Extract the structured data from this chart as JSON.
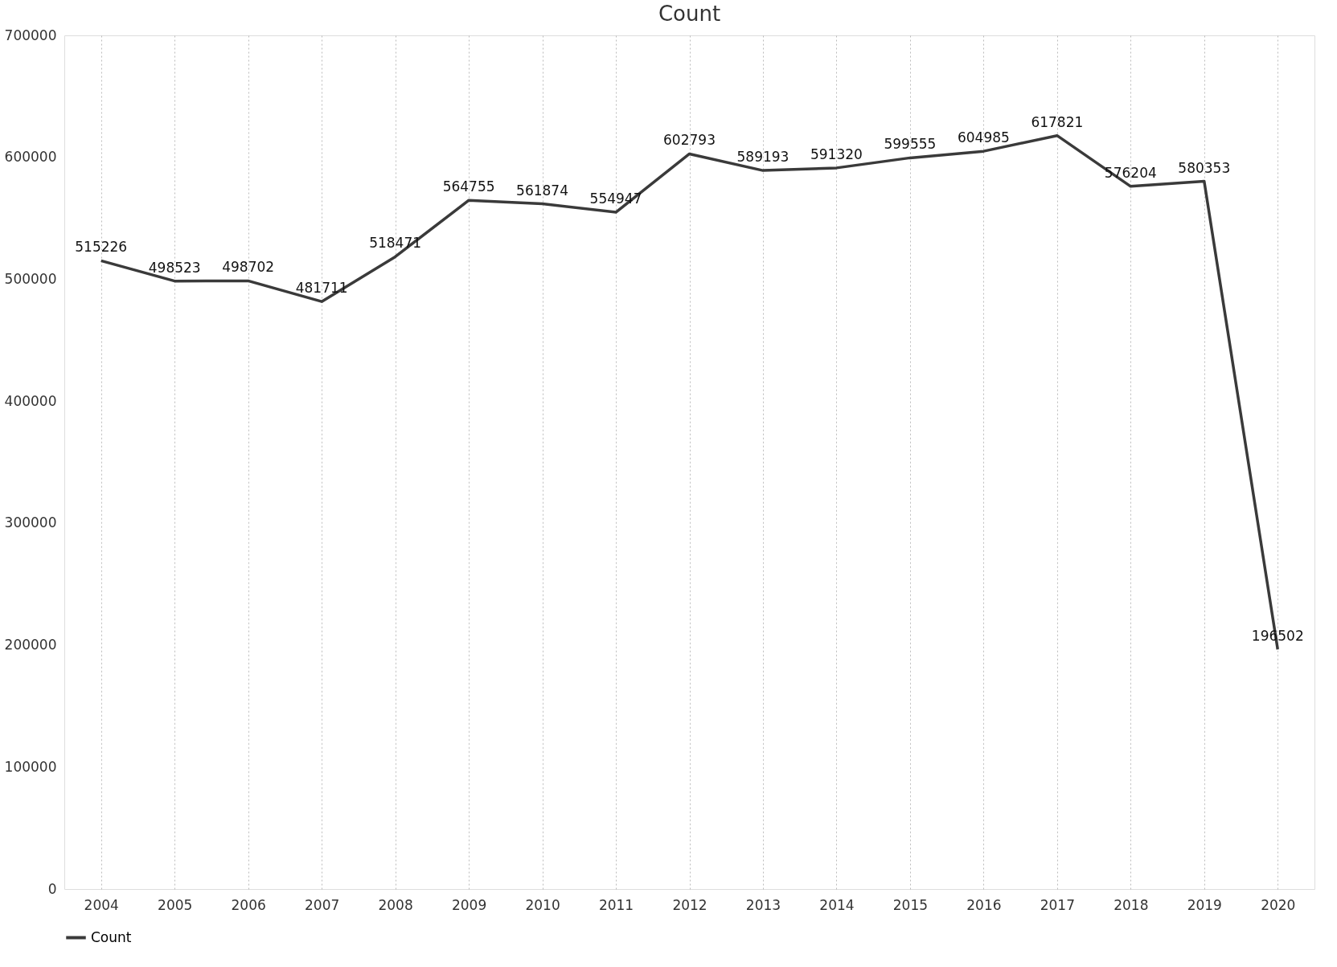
{
  "chart_data": {
    "type": "line",
    "title": "Count",
    "categories": [
      "2004",
      "2005",
      "2006",
      "2007",
      "2008",
      "2009",
      "2010",
      "2011",
      "2012",
      "2013",
      "2014",
      "2015",
      "2016",
      "2017",
      "2018",
      "2019",
      "2020"
    ],
    "series": [
      {
        "name": "Count",
        "color": "#3a3a3a",
        "values": [
          515226,
          498523,
          498702,
          481711,
          518471,
          564755,
          561874,
          554947,
          602793,
          589193,
          591320,
          599555,
          604985,
          617821,
          576204,
          580353,
          196502
        ]
      }
    ],
    "ylim": [
      0,
      700000
    ],
    "yticks": [
      0,
      100000,
      200000,
      300000,
      400000,
      500000,
      600000,
      700000
    ],
    "data_labels": true,
    "grid": "x",
    "legend": "bottom",
    "marker": "none",
    "line_style": "solid"
  }
}
